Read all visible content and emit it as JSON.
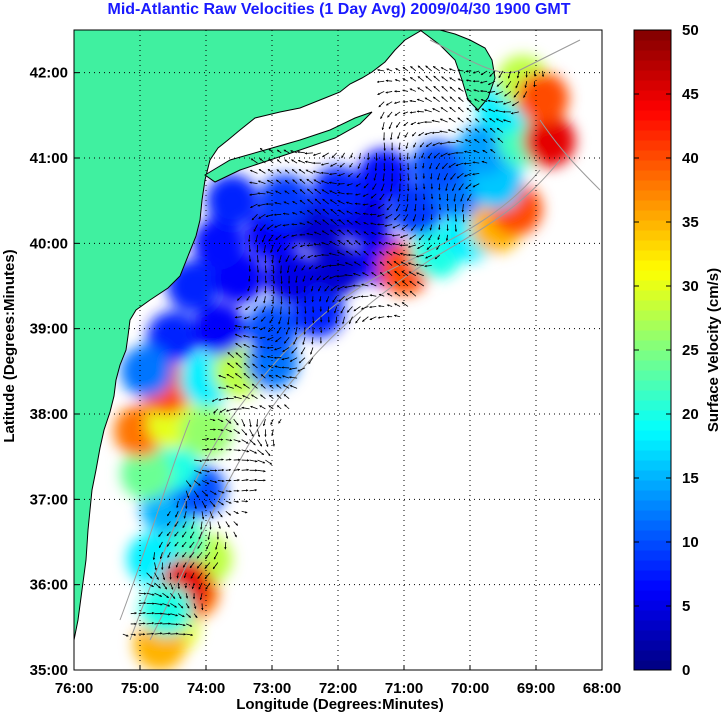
{
  "chart_data": {
    "type": "heatmap",
    "title": "Mid-Atlantic Raw Velocities (1 Day Avg) 2009/04/30 1900 GMT",
    "xlabel": "Longitude (Degrees:Minutes)",
    "ylabel": "Latitude (Degrees:Minutes)",
    "x_ticks": [
      {
        "value": -76,
        "label": "76:00"
      },
      {
        "value": -75,
        "label": "75:00"
      },
      {
        "value": -74,
        "label": "74:00"
      },
      {
        "value": -73,
        "label": "73:00"
      },
      {
        "value": -72,
        "label": "72:00"
      },
      {
        "value": -71,
        "label": "71:00"
      },
      {
        "value": -70,
        "label": "70:00"
      },
      {
        "value": -69,
        "label": "69:00"
      },
      {
        "value": -68,
        "label": "68:00"
      }
    ],
    "y_ticks": [
      {
        "value": 35,
        "label": "35:00"
      },
      {
        "value": 36,
        "label": "36:00"
      },
      {
        "value": 37,
        "label": "37:00"
      },
      {
        "value": 38,
        "label": "38:00"
      },
      {
        "value": 39,
        "label": "39:00"
      },
      {
        "value": 40,
        "label": "40:00"
      },
      {
        "value": 41,
        "label": "41:00"
      },
      {
        "value": 42,
        "label": "42:00"
      }
    ],
    "xlim": [
      -76,
      -68
    ],
    "ylim": [
      35,
      42.5
    ],
    "grid": true,
    "colorbar": {
      "label": "Surface Velocity (cm/s)",
      "range": [
        0,
        50
      ],
      "ticks": [
        {
          "value": 0,
          "label": "0"
        },
        {
          "value": 5,
          "label": "5"
        },
        {
          "value": 10,
          "label": "10"
        },
        {
          "value": 15,
          "label": "15"
        },
        {
          "value": 20,
          "label": "20"
        },
        {
          "value": 25,
          "label": "25"
        },
        {
          "value": 30,
          "label": "30"
        },
        {
          "value": 35,
          "label": "35"
        },
        {
          "value": 40,
          "label": "40"
        },
        {
          "value": 45,
          "label": "45"
        },
        {
          "value": 50,
          "label": "50"
        }
      ],
      "colormap": "jet"
    },
    "colors": {
      "land": "#40f0a0",
      "title": "#1a1aff",
      "bathymetry": "#9a9a9a",
      "coastline": "#000000"
    },
    "velocity_field": [
      [
        -74.5,
        35.5,
        30
      ],
      [
        -74.2,
        35.9,
        38
      ],
      [
        -74.0,
        36.3,
        28
      ],
      [
        -74.4,
        36.5,
        22
      ],
      [
        -74.8,
        36.3,
        18
      ],
      [
        -74.6,
        36.9,
        15
      ],
      [
        -74.1,
        37.1,
        10
      ],
      [
        -74.5,
        37.4,
        20
      ],
      [
        -74.9,
        37.3,
        24
      ],
      [
        -75.0,
        37.8,
        38
      ],
      [
        -74.5,
        37.9,
        30
      ],
      [
        -74.0,
        37.8,
        26
      ],
      [
        -74.6,
        38.3,
        40
      ],
      [
        -74.0,
        38.4,
        18
      ],
      [
        -73.5,
        38.5,
        28
      ],
      [
        -73.0,
        38.6,
        12
      ],
      [
        -74.5,
        38.9,
        8
      ],
      [
        -73.8,
        39.0,
        6
      ],
      [
        -73.0,
        39.0,
        10
      ],
      [
        -72.3,
        39.2,
        8
      ],
      [
        -74.2,
        39.5,
        8
      ],
      [
        -73.5,
        39.6,
        6
      ],
      [
        -72.7,
        39.6,
        5
      ],
      [
        -72.0,
        39.7,
        4
      ],
      [
        -71.3,
        39.8,
        6
      ],
      [
        -71.0,
        39.7,
        40
      ],
      [
        -70.5,
        39.9,
        20
      ],
      [
        -70.0,
        40.1,
        18
      ],
      [
        -69.6,
        40.2,
        35
      ],
      [
        -69.3,
        40.4,
        40
      ],
      [
        -73.8,
        40.0,
        7
      ],
      [
        -73.0,
        40.1,
        6
      ],
      [
        -72.3,
        40.2,
        4
      ],
      [
        -71.6,
        40.3,
        5
      ],
      [
        -70.8,
        40.4,
        9
      ],
      [
        -70.2,
        40.6,
        12
      ],
      [
        -69.6,
        40.7,
        16
      ],
      [
        -73.6,
        40.5,
        8
      ],
      [
        -72.8,
        40.5,
        9
      ],
      [
        -72.0,
        40.6,
        8
      ],
      [
        -71.3,
        40.8,
        7
      ],
      [
        -70.5,
        40.9,
        10
      ],
      [
        -69.8,
        41.1,
        14
      ],
      [
        -69.2,
        41.2,
        22
      ],
      [
        -68.8,
        41.2,
        45
      ],
      [
        -69.5,
        41.6,
        18
      ],
      [
        -69.2,
        41.9,
        28
      ],
      [
        -68.9,
        41.7,
        40
      ],
      [
        -74.9,
        38.5,
        12
      ],
      [
        -74.3,
        36.0,
        45
      ],
      [
        -74.7,
        35.3,
        35
      ],
      [
        -74.6,
        35.7,
        20
      ]
    ],
    "vector_grid": {
      "lon_range": [
        -75.5,
        -68.7
      ],
      "lat_range": [
        35.3,
        42.1
      ],
      "step": 0.12,
      "mean_speed_cm_s": 12
    }
  }
}
